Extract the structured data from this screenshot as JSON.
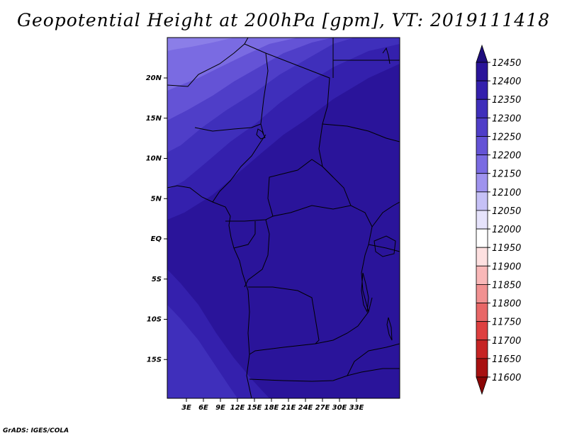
{
  "title": "Geopotential Height at 200hPa [gpm], VT: 2019111418",
  "credit": "GrADS: IGES/COLA",
  "lat_labels": [
    "20N",
    "15N",
    "10N",
    "5N",
    "EQ",
    "5S",
    "10S",
    "15S"
  ],
  "lat_values": [
    20,
    15,
    10,
    5,
    0,
    -5,
    -10,
    -15
  ],
  "lon_labels": [
    "3E",
    "6E",
    "9E",
    "12E",
    "15E",
    "18E",
    "21E",
    "24E",
    "27E",
    "30E",
    "33E"
  ],
  "lon_values": [
    3,
    6,
    9,
    12,
    15,
    18,
    21,
    24,
    27,
    30,
    33
  ],
  "colorbar": {
    "labels": [
      "12450",
      "12400",
      "12350",
      "12300",
      "12250",
      "12200",
      "12150",
      "12100",
      "12050",
      "12000",
      "11950",
      "11900",
      "11850",
      "11800",
      "11750",
      "11700",
      "11650",
      "11600"
    ],
    "colors": [
      "#1e0d7d",
      "#2a149a",
      "#3420ad",
      "#3f2fbb",
      "#4f3ec8",
      "#6453d6",
      "#7a6be2",
      "#9f93ee",
      "#c6c1f6",
      "#e6e3fb",
      "#ffffff",
      "#fde0e0",
      "#f9b8b8",
      "#f19191",
      "#e86767",
      "#de3f3f",
      "#c62424",
      "#a81111",
      "#8a0505"
    ]
  }
}
